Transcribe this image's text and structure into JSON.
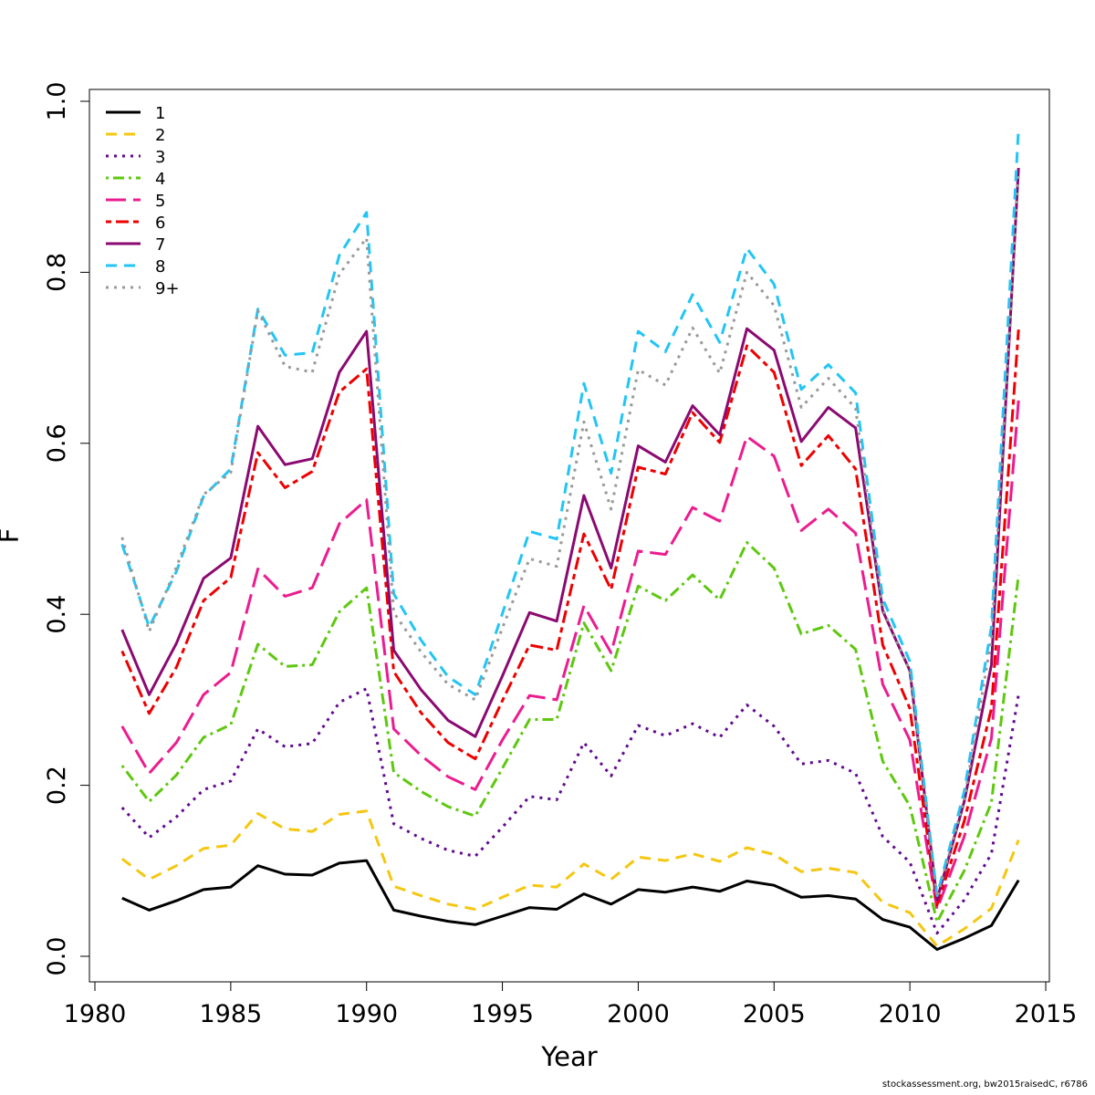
{
  "chart_data": {
    "type": "line",
    "xlabel": "Year",
    "ylabel": "F",
    "xlim": [
      1980,
      2015
    ],
    "ylim": [
      0,
      1.0
    ],
    "x_ticks": [
      "1980",
      "1985",
      "1990",
      "1995",
      "2000",
      "2005",
      "2010",
      "2015"
    ],
    "y_ticks": [
      "0.0",
      "0.2",
      "0.4",
      "0.6",
      "0.8",
      "1.0"
    ],
    "grid": false,
    "legend_position": "top-left",
    "x": [
      1981,
      1982,
      1983,
      1984,
      1985,
      1986,
      1987,
      1988,
      1989,
      1990,
      1991,
      1992,
      1993,
      1994,
      1995,
      1996,
      1997,
      1998,
      1999,
      2000,
      2001,
      2002,
      2003,
      2004,
      2005,
      2006,
      2007,
      2008,
      2009,
      2010,
      2011,
      2012,
      2013,
      2014
    ],
    "series": [
      {
        "name": "1",
        "color": "#000000",
        "dash": "solid",
        "values": [
          0.068,
          0.054,
          0.065,
          0.078,
          0.081,
          0.106,
          0.096,
          0.095,
          0.109,
          0.112,
          0.054,
          0.047,
          0.041,
          0.037,
          0.047,
          0.057,
          0.055,
          0.073,
          0.061,
          0.078,
          0.075,
          0.081,
          0.076,
          0.088,
          0.083,
          0.069,
          0.071,
          0.067,
          0.043,
          0.034,
          0.008,
          0.021,
          0.036,
          0.089
        ]
      },
      {
        "name": "2",
        "color": "#f5c710",
        "dash": "dashed",
        "values": [
          0.114,
          0.09,
          0.106,
          0.126,
          0.13,
          0.167,
          0.149,
          0.146,
          0.166,
          0.17,
          0.082,
          0.071,
          0.061,
          0.055,
          0.069,
          0.083,
          0.081,
          0.108,
          0.09,
          0.116,
          0.112,
          0.12,
          0.111,
          0.127,
          0.119,
          0.099,
          0.103,
          0.098,
          0.063,
          0.051,
          0.012,
          0.032,
          0.056,
          0.136
        ]
      },
      {
        "name": "3",
        "color": "#61098f",
        "dash": "dotted",
        "values": [
          0.174,
          0.139,
          0.163,
          0.195,
          0.205,
          0.266,
          0.245,
          0.249,
          0.297,
          0.313,
          0.155,
          0.138,
          0.124,
          0.117,
          0.151,
          0.187,
          0.183,
          0.25,
          0.211,
          0.27,
          0.258,
          0.272,
          0.256,
          0.294,
          0.269,
          0.225,
          0.229,
          0.214,
          0.14,
          0.11,
          0.027,
          0.066,
          0.12,
          0.306
        ]
      },
      {
        "name": "4",
        "color": "#5ec80f",
        "dash": "dotdash",
        "values": [
          0.223,
          0.181,
          0.212,
          0.256,
          0.271,
          0.365,
          0.339,
          0.341,
          0.403,
          0.431,
          0.215,
          0.193,
          0.175,
          0.164,
          0.22,
          0.277,
          0.277,
          0.39,
          0.334,
          0.433,
          0.416,
          0.446,
          0.417,
          0.484,
          0.454,
          0.377,
          0.387,
          0.359,
          0.228,
          0.176,
          0.04,
          0.1,
          0.18,
          0.446
        ]
      },
      {
        "name": "5",
        "color": "#ec1c8f",
        "dash": "longdash",
        "values": [
          0.269,
          0.214,
          0.25,
          0.306,
          0.332,
          0.453,
          0.421,
          0.431,
          0.506,
          0.534,
          0.266,
          0.235,
          0.21,
          0.195,
          0.253,
          0.305,
          0.3,
          0.41,
          0.355,
          0.474,
          0.47,
          0.525,
          0.509,
          0.608,
          0.585,
          0.498,
          0.523,
          0.495,
          0.318,
          0.253,
          0.055,
          0.14,
          0.255,
          0.65
        ]
      },
      {
        "name": "6",
        "color": "#ee0000",
        "dash": "twodash",
        "values": [
          0.357,
          0.284,
          0.338,
          0.416,
          0.443,
          0.589,
          0.548,
          0.567,
          0.66,
          0.687,
          0.333,
          0.285,
          0.25,
          0.231,
          0.299,
          0.364,
          0.358,
          0.494,
          0.429,
          0.572,
          0.564,
          0.636,
          0.601,
          0.714,
          0.683,
          0.574,
          0.609,
          0.57,
          0.364,
          0.29,
          0.06,
          0.158,
          0.29,
          0.733
        ]
      },
      {
        "name": "7",
        "color": "#8b0a71",
        "dash": "solid",
        "values": [
          0.382,
          0.306,
          0.366,
          0.442,
          0.466,
          0.62,
          0.575,
          0.582,
          0.683,
          0.731,
          0.358,
          0.312,
          0.276,
          0.257,
          0.328,
          0.402,
          0.392,
          0.539,
          0.454,
          0.597,
          0.578,
          0.644,
          0.61,
          0.734,
          0.709,
          0.602,
          0.642,
          0.618,
          0.404,
          0.334,
          0.066,
          0.181,
          0.341,
          0.922
        ]
      },
      {
        "name": "8",
        "color": "#22c5f5",
        "dash": "dashed",
        "values": [
          0.482,
          0.385,
          0.45,
          0.538,
          0.57,
          0.757,
          0.703,
          0.706,
          0.82,
          0.87,
          0.424,
          0.37,
          0.327,
          0.306,
          0.401,
          0.497,
          0.488,
          0.67,
          0.565,
          0.731,
          0.707,
          0.774,
          0.718,
          0.828,
          0.786,
          0.663,
          0.692,
          0.659,
          0.418,
          0.345,
          0.071,
          0.193,
          0.386,
          0.968
        ]
      },
      {
        "name": "9+",
        "color": "#999999",
        "dash": "dotted",
        "values": [
          0.49,
          0.38,
          0.455,
          0.54,
          0.566,
          0.755,
          0.69,
          0.683,
          0.798,
          0.84,
          0.402,
          0.356,
          0.318,
          0.3,
          0.384,
          0.465,
          0.456,
          0.625,
          0.523,
          0.686,
          0.668,
          0.735,
          0.682,
          0.8,
          0.761,
          0.642,
          0.676,
          0.641,
          0.406,
          0.334,
          0.069,
          0.183,
          0.371,
          0.915
        ]
      }
    ]
  },
  "footer": {
    "credit": "stockassessment.org, bw2015raisedC, r6786"
  }
}
